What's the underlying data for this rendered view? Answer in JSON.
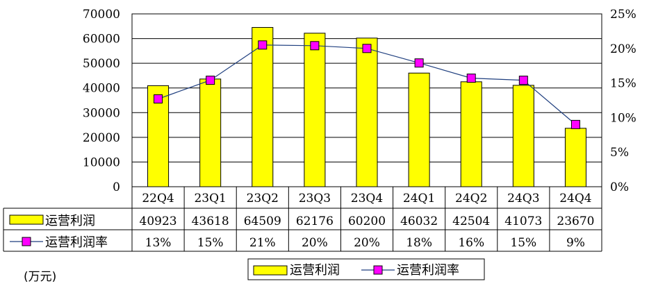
{
  "unit": "(万元)",
  "colors": {
    "bar": "#ffff00",
    "bar_border": "#000000",
    "line": "#1f3f7f",
    "marker": "#ff00ff"
  },
  "chart_data": {
    "type": "bar",
    "categories": [
      "22Q4",
      "23Q1",
      "23Q2",
      "23Q3",
      "23Q4",
      "24Q1",
      "24Q2",
      "24Q3",
      "24Q4"
    ],
    "series": [
      {
        "name": "运营利润",
        "type": "bar",
        "axis": "left",
        "values": [
          40923,
          43618,
          64509,
          62176,
          60200,
          46032,
          42504,
          41073,
          23670
        ],
        "table_labels": [
          "40923",
          "43618",
          "64509",
          "62176",
          "60200",
          "46032",
          "42504",
          "41073",
          "23670"
        ]
      },
      {
        "name": "运营利润率",
        "type": "line",
        "axis": "right",
        "values": [
          12.7,
          15.4,
          20.5,
          20.4,
          20.0,
          17.9,
          15.7,
          15.4,
          9.0
        ],
        "table_labels": [
          "13%",
          "15%",
          "21%",
          "20%",
          "20%",
          "18%",
          "16%",
          "15%",
          "9%"
        ]
      }
    ],
    "y_left": {
      "min": 0,
      "max": 70000,
      "ticks": [
        "0",
        "10000",
        "20000",
        "30000",
        "40000",
        "50000",
        "60000",
        "70000"
      ]
    },
    "y_right": {
      "min": 0,
      "max": 25,
      "ticks": [
        "0%",
        "5%",
        "10%",
        "15%",
        "20%",
        "25%"
      ]
    },
    "grid": true,
    "legend": {
      "position": "bottom",
      "entries": [
        "运营利润",
        "运营利润率"
      ]
    }
  }
}
